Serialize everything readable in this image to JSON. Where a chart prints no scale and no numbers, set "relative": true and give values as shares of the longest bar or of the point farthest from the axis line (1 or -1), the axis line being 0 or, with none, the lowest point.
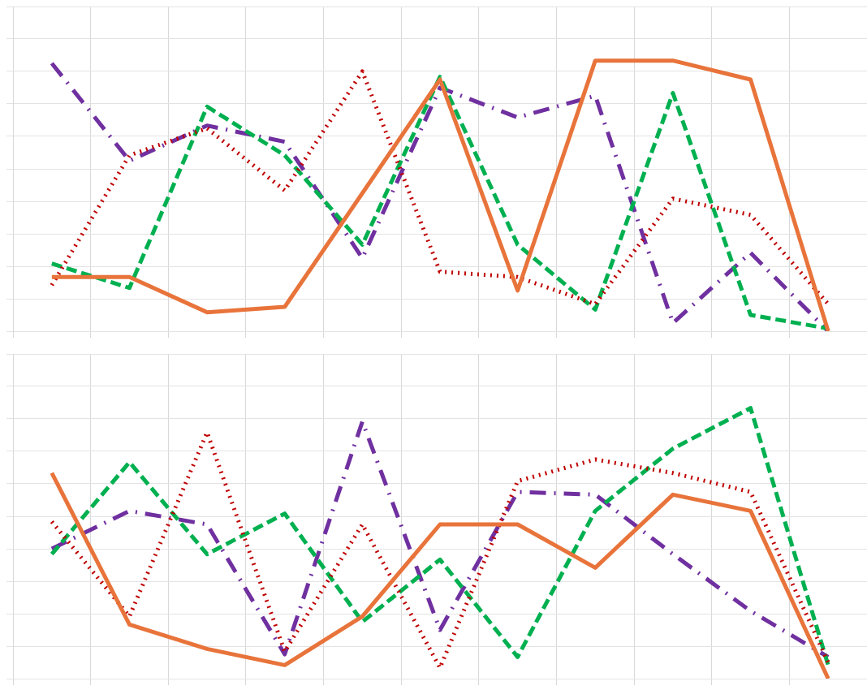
{
  "chart_data": [
    {
      "type": "line",
      "relative": true,
      "grid": true,
      "legend": false,
      "categories": [
        null,
        null,
        null,
        null,
        null,
        null,
        null,
        null,
        null,
        null,
        null
      ],
      "series": [
        {
          "color": "#e8743b",
          "line_style": "solid",
          "values": [
            0.2,
            0.2,
            0.07,
            0.09,
            0.51,
            0.93,
            0.15,
            1,
            1,
            0.93,
            0
          ]
        },
        {
          "color": "#c00000",
          "line_style": "dotted",
          "values": [
            0.17,
            0.65,
            0.75,
            0.52,
            0.96,
            0.22,
            0.2,
            0.1,
            0.49,
            0.43,
            0.1
          ]
        },
        {
          "color": "#00b050",
          "line_style": "dashed",
          "values": [
            0.25,
            0.16,
            0.83,
            0.65,
            0.32,
            0.94,
            0.32,
            0.08,
            0.88,
            0.06,
            0.01
          ]
        },
        {
          "color": "#7030a0",
          "line_style": "dashdot",
          "values": [
            0.99,
            0.63,
            0.76,
            0.7,
            0.27,
            0.9,
            0.79,
            0.87,
            0.03,
            0.29,
            0
          ]
        }
      ]
    },
    {
      "type": "line",
      "relative": true,
      "grid": true,
      "legend": false,
      "categories": [
        null,
        null,
        null,
        null,
        null,
        null,
        null,
        null,
        null,
        null,
        null
      ],
      "series": [
        {
          "color": "#e8743b",
          "line_style": "solid",
          "values": [
            0.76,
            0.2,
            0.11,
            0.05,
            0.23,
            0.57,
            0.57,
            0.41,
            0.68,
            0.62,
            0
          ]
        },
        {
          "color": "#c00000",
          "line_style": "dotted",
          "values": [
            0.58,
            0.23,
            0.91,
            0.1,
            0.57,
            0.04,
            0.73,
            0.81,
            0.76,
            0.69,
            0.06
          ]
        },
        {
          "color": "#00b050",
          "line_style": "dashed",
          "values": [
            0.46,
            0.8,
            0.46,
            0.61,
            0.21,
            0.44,
            0.08,
            0.62,
            0.85,
            1,
            0.05
          ]
        },
        {
          "color": "#7030a0",
          "line_style": "dashdot",
          "values": [
            0.48,
            0.62,
            0.57,
            0.09,
            0.95,
            0.18,
            0.69,
            0.68,
            0.46,
            0.25,
            0.08
          ]
        }
      ]
    }
  ]
}
